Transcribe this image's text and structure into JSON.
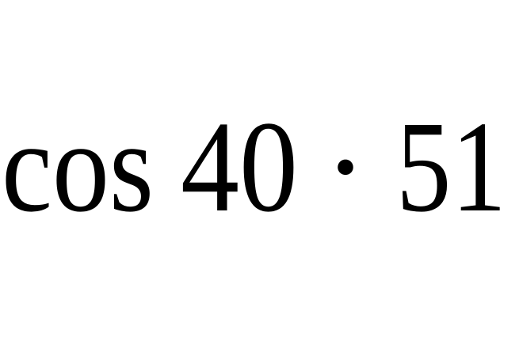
{
  "expression": {
    "function": "cos",
    "argument": 40,
    "operator": "·",
    "factor": 51
  }
}
